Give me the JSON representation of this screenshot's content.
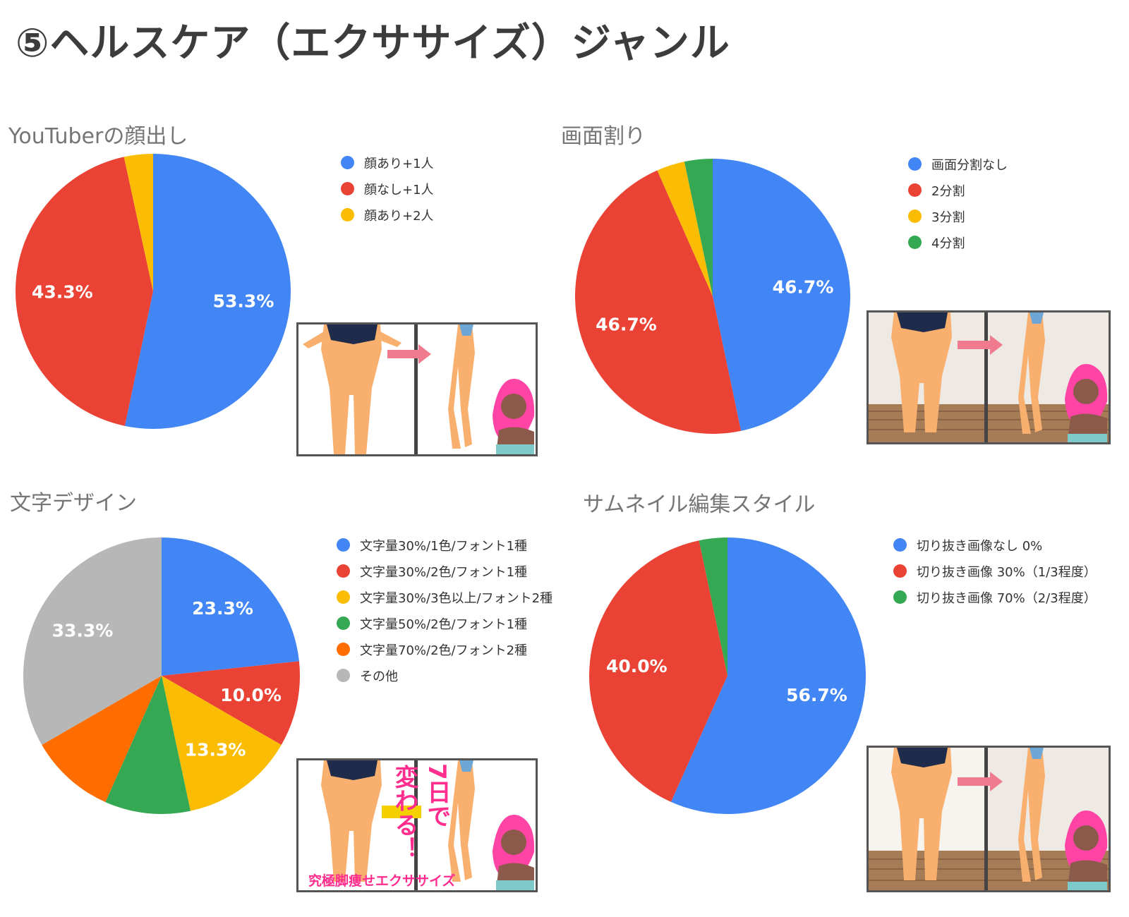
{
  "page": {
    "title": "⑤ヘルスケア（エクササイズ）ジャンル"
  },
  "chart_data": [
    {
      "type": "pie",
      "title": "YouTuberの顔出し",
      "slices": [
        {
          "label": "顔あり+1人",
          "value": 53.3,
          "display": "53.3%",
          "color": "#4285f4"
        },
        {
          "label": "顔なし+1人",
          "value": 43.3,
          "display": "43.3%",
          "color": "#ea4335"
        },
        {
          "label": "顔あり+2人",
          "value": 3.4,
          "display": "",
          "color": "#fbbc04"
        }
      ],
      "legend_position": "right"
    },
    {
      "type": "pie",
      "title": "画面割り",
      "slices": [
        {
          "label": "画面分割なし",
          "value": 46.7,
          "display": "46.7%",
          "color": "#4285f4"
        },
        {
          "label": "2分割",
          "value": 46.7,
          "display": "46.7%",
          "color": "#ea4335"
        },
        {
          "label": "3分割",
          "value": 3.3,
          "display": "",
          "color": "#fbbc04"
        },
        {
          "label": "4分割",
          "value": 3.3,
          "display": "",
          "color": "#34a853"
        }
      ],
      "legend_position": "right"
    },
    {
      "type": "pie",
      "title": "文字デザイン",
      "slices": [
        {
          "label": "文字量30%/1色/フォント1種",
          "value": 23.3,
          "display": "23.3%",
          "color": "#4285f4"
        },
        {
          "label": "文字量30%/2色/フォント1種",
          "value": 10.0,
          "display": "10.0%",
          "color": "#ea4335"
        },
        {
          "label": "文字量30%/3色以上/フォント2種",
          "value": 13.3,
          "display": "13.3%",
          "color": "#fbbc04"
        },
        {
          "label": "文字量50%/2色/フォント1種",
          "value": 10.0,
          "display": "",
          "color": "#34a853"
        },
        {
          "label": "文字量70%/2色/フォント2種",
          "value": 10.0,
          "display": "",
          "color": "#ff6d01"
        },
        {
          "label": "その他",
          "value": 33.3,
          "display": "33.3%",
          "color": "#b7b7b7"
        }
      ],
      "legend_position": "right"
    },
    {
      "type": "pie",
      "title": "サムネイル編集スタイル",
      "slices": [
        {
          "label": "切り抜き画像なし 0%",
          "value": 56.7,
          "display": "56.7%",
          "color": "#4285f4"
        },
        {
          "label": "切り抜き画像 30%（1/3程度）",
          "value": 40.0,
          "display": "40.0%",
          "color": "#ea4335"
        },
        {
          "label": "切り抜き画像 70%（2/3程度）",
          "value": 3.3,
          "display": "",
          "color": "#34a853"
        }
      ],
      "legend_position": "right"
    }
  ],
  "thumbnails": [
    {
      "style": "cutout-white"
    },
    {
      "style": "room-photo"
    },
    {
      "style": "cutout-text",
      "text": {
        "a": "7日で",
        "b": "変わる！",
        "caption": "究極脚痩せエクササイズ"
      }
    },
    {
      "style": "room-photo-partial"
    }
  ]
}
